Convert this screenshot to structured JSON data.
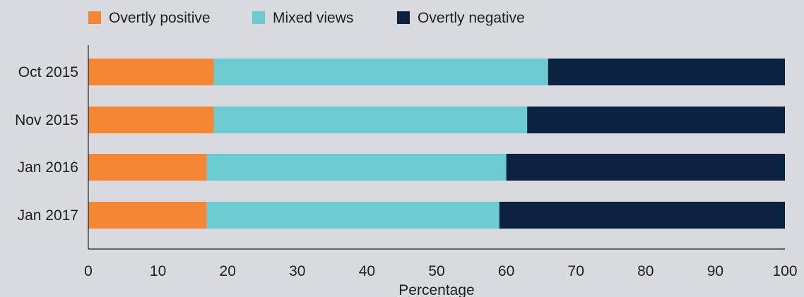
{
  "chart_data": {
    "type": "bar",
    "orientation": "horizontal",
    "stacked": true,
    "title": "",
    "xlabel": "Percentage",
    "ylabel": "",
    "xlim": [
      0,
      100
    ],
    "xticks": [
      "0",
      "10",
      "20",
      "30",
      "40",
      "50",
      "60",
      "70",
      "80",
      "90",
      "100"
    ],
    "grid": false,
    "legend_position": "top-left",
    "categories": [
      "Oct 2015",
      "Nov 2015",
      "Jan 2016",
      "Jan 2017"
    ],
    "series": [
      {
        "name": "Overtly positive",
        "color": "#f58634",
        "values": [
          18,
          18,
          17,
          17
        ]
      },
      {
        "name": "Mixed views",
        "color": "#6bcbd0",
        "values": [
          48,
          45,
          43,
          42
        ]
      },
      {
        "name": "Overtly negative",
        "color": "#0a2240",
        "values": [
          34,
          37,
          40,
          41
        ]
      }
    ]
  },
  "colors": {
    "background": "#d9dadf",
    "axis": "#1f1f1f"
  }
}
